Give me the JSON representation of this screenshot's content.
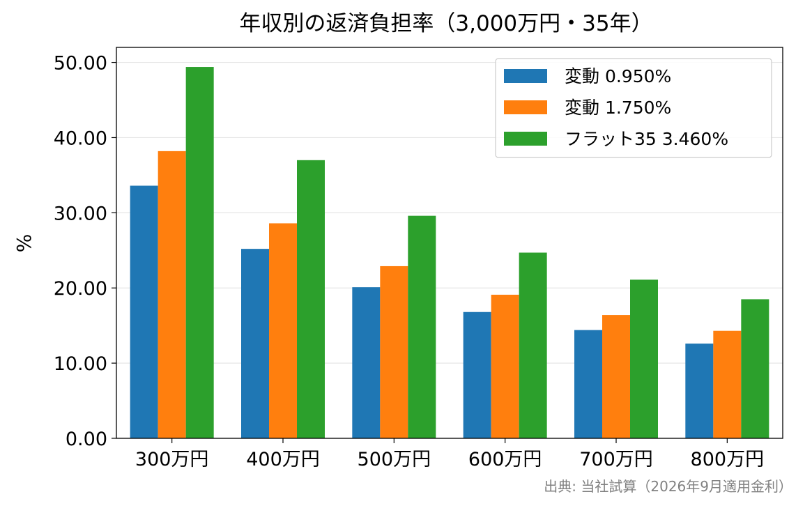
{
  "chart_data": {
    "type": "bar",
    "title": "年収別の返済負担率（3,000万円・35年）",
    "xlabel": "",
    "ylabel": "%",
    "categories": [
      "300万円",
      "400万円",
      "500万円",
      "600万円",
      "700万円",
      "800万円"
    ],
    "series": [
      {
        "name": "変動 0.950%",
        "color": "#1f77b4",
        "values": [
          33.6,
          25.2,
          20.1,
          16.8,
          14.4,
          12.6
        ]
      },
      {
        "name": "変動 1.750%",
        "color": "#ff7f0e",
        "values": [
          38.2,
          28.6,
          22.9,
          19.1,
          16.4,
          14.3
        ]
      },
      {
        "name": "フラット35 3.460%",
        "color": "#2ca02c",
        "values": [
          49.4,
          37.0,
          29.6,
          24.7,
          21.1,
          18.5
        ]
      }
    ],
    "ylim": [
      0,
      52
    ],
    "yticks": [
      0,
      10,
      20,
      30,
      40,
      50
    ],
    "ytick_labels": [
      "0.00",
      "10.00",
      "20.00",
      "30.00",
      "40.00",
      "50.00"
    ],
    "grid": true,
    "legend_position": "top-right",
    "source": "出典: 当社試算（2026年9月適用金利）"
  }
}
